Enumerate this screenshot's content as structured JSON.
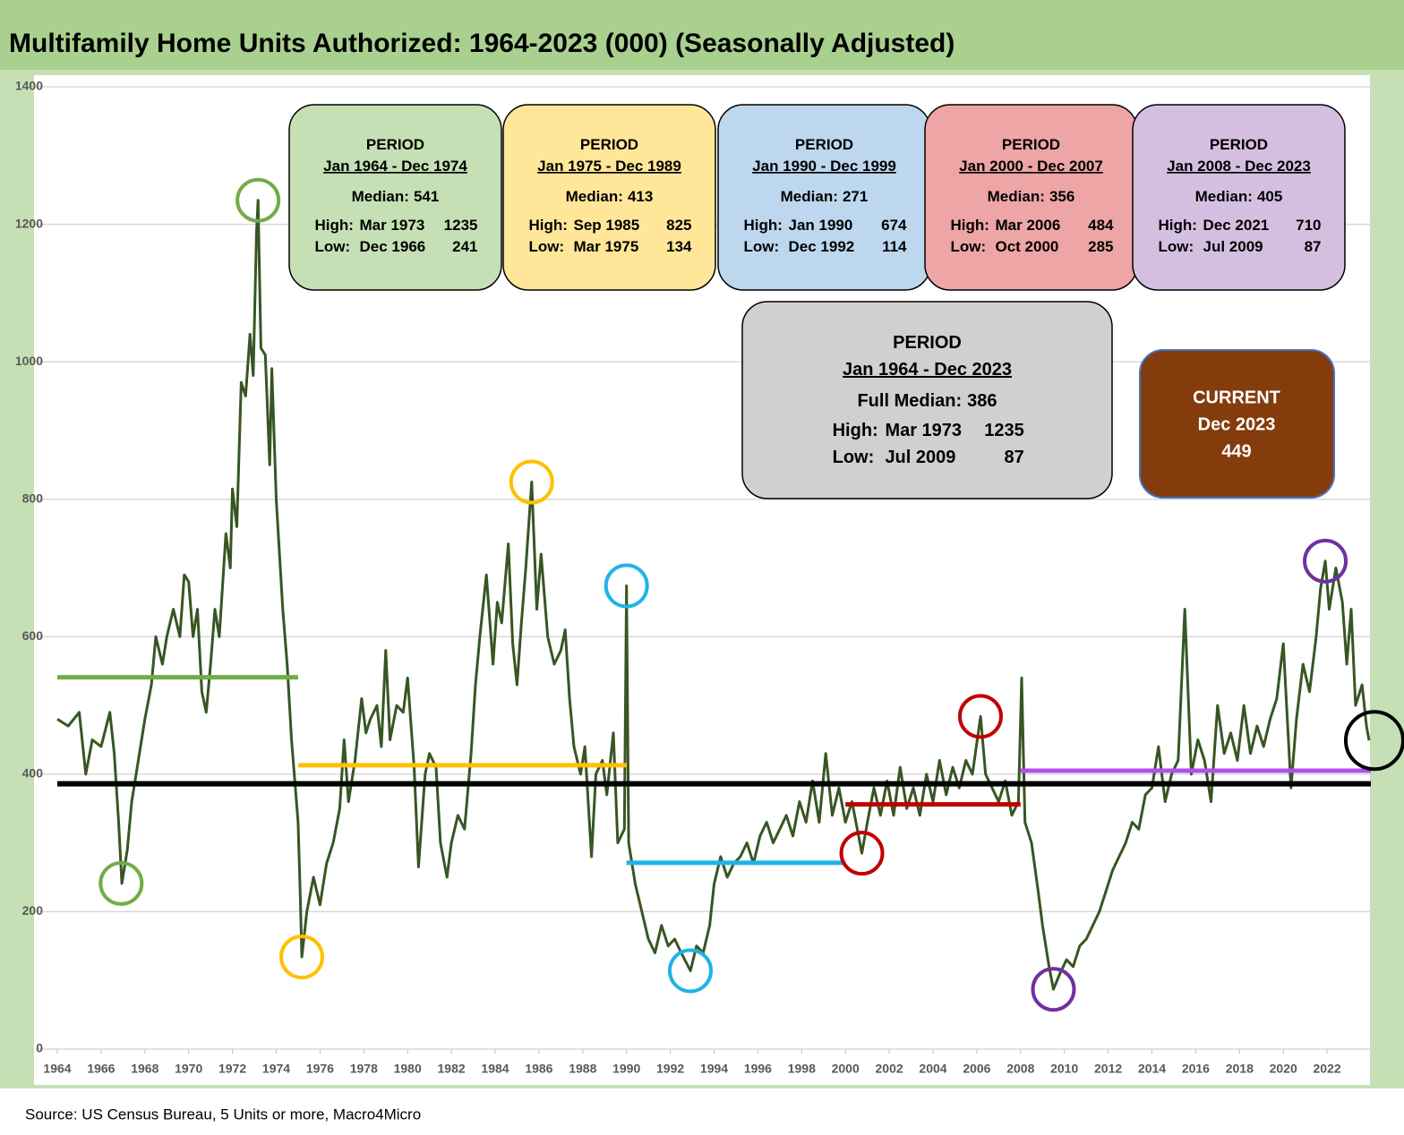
{
  "chart_data": {
    "type": "line",
    "title": "Multifamily Home Units Authorized: 1964-2023 (000) (Seasonally Adjusted)",
    "source": "Source: US Census Bureau, 5 Units or more, Macro4Micro",
    "xlim": [
      1964,
      2024
    ],
    "xticks": [
      1964,
      1966,
      1968,
      1970,
      1972,
      1974,
      1976,
      1978,
      1980,
      1982,
      1984,
      1986,
      1988,
      1990,
      1992,
      1994,
      1996,
      1998,
      2000,
      2002,
      2004,
      2006,
      2008,
      2010,
      2012,
      2014,
      2016,
      2018,
      2020,
      2022
    ],
    "ylim": [
      0,
      1400
    ],
    "yticks": [
      0,
      200,
      400,
      600,
      800,
      1000,
      1200,
      1400
    ],
    "grid": true,
    "x": [
      1964.0,
      1964.5,
      1965.0,
      1965.3,
      1965.6,
      1966.0,
      1966.4,
      1966.6,
      1966.8,
      1966.95,
      1967.2,
      1967.4,
      1967.7,
      1968.0,
      1968.3,
      1968.5,
      1968.8,
      1969.0,
      1969.3,
      1969.6,
      1969.8,
      1970.0,
      1970.2,
      1970.4,
      1970.6,
      1970.8,
      1971.0,
      1971.2,
      1971.4,
      1971.7,
      1971.9,
      1972.0,
      1972.2,
      1972.4,
      1972.6,
      1972.8,
      1972.95,
      1973.1,
      1973.17,
      1973.3,
      1973.5,
      1973.7,
      1973.8,
      1974.0,
      1974.3,
      1974.5,
      1974.7,
      1975.0,
      1975.1,
      1975.17,
      1975.4,
      1975.7,
      1976.0,
      1976.3,
      1976.6,
      1976.9,
      1977.1,
      1977.3,
      1977.6,
      1977.9,
      1978.1,
      1978.3,
      1978.6,
      1978.8,
      1979.0,
      1979.2,
      1979.5,
      1979.8,
      1980.0,
      1980.3,
      1980.5,
      1980.8,
      1981.0,
      1981.3,
      1981.5,
      1981.8,
      1982.0,
      1982.3,
      1982.6,
      1982.9,
      1983.1,
      1983.3,
      1983.6,
      1983.9,
      1984.1,
      1984.3,
      1984.6,
      1984.8,
      1985.0,
      1985.2,
      1985.4,
      1985.67,
      1985.9,
      1986.1,
      1986.4,
      1986.7,
      1987.0,
      1987.2,
      1987.4,
      1987.6,
      1987.9,
      1988.1,
      1988.4,
      1988.6,
      1988.9,
      1989.1,
      1989.4,
      1989.6,
      1989.9,
      1990.0,
      1990.1,
      1990.4,
      1990.7,
      1991.0,
      1991.3,
      1991.6,
      1991.9,
      1992.2,
      1992.5,
      1992.92,
      1993.2,
      1993.5,
      1993.8,
      1994.0,
      1994.3,
      1994.6,
      1994.9,
      1995.2,
      1995.5,
      1995.8,
      1996.1,
      1996.4,
      1996.7,
      1997.0,
      1997.3,
      1997.6,
      1997.9,
      1998.2,
      1998.5,
      1998.8,
      1999.1,
      1999.4,
      1999.7,
      2000.0,
      2000.3,
      2000.6,
      2000.75,
      2001.0,
      2001.3,
      2001.6,
      2001.9,
      2002.2,
      2002.5,
      2002.8,
      2003.1,
      2003.4,
      2003.7,
      2004.0,
      2004.3,
      2004.6,
      2004.9,
      2005.2,
      2005.5,
      2005.8,
      2006.17,
      2006.4,
      2006.7,
      2007.0,
      2007.3,
      2007.6,
      2007.9,
      2008.05,
      2008.2,
      2008.5,
      2008.8,
      2009.0,
      2009.3,
      2009.5,
      2009.8,
      2010.1,
      2010.4,
      2010.7,
      2011.0,
      2011.3,
      2011.6,
      2011.9,
      2012.2,
      2012.5,
      2012.8,
      2013.1,
      2013.4,
      2013.7,
      2014.0,
      2014.3,
      2014.6,
      2014.9,
      2015.2,
      2015.5,
      2015.8,
      2016.1,
      2016.4,
      2016.7,
      2017.0,
      2017.3,
      2017.6,
      2017.9,
      2018.2,
      2018.5,
      2018.8,
      2019.1,
      2019.4,
      2019.7,
      2020.0,
      2020.2,
      2020.35,
      2020.6,
      2020.9,
      2021.2,
      2021.5,
      2021.7,
      2021.92,
      2022.1,
      2022.4,
      2022.7,
      2022.9,
      2023.1,
      2023.3,
      2023.6,
      2023.8,
      2023.92
    ],
    "series": [
      {
        "color": "#375623",
        "values": [
          480,
          470,
          490,
          400,
          450,
          440,
          490,
          430,
          330,
          241,
          290,
          360,
          420,
          480,
          530,
          600,
          560,
          600,
          640,
          600,
          690,
          680,
          600,
          640,
          520,
          490,
          560,
          640,
          600,
          750,
          700,
          815,
          760,
          970,
          950,
          1040,
          980,
          1190,
          1235,
          1020,
          1010,
          850,
          990,
          800,
          640,
          560,
          450,
          330,
          220,
          134,
          200,
          250,
          210,
          270,
          300,
          350,
          450,
          360,
          420,
          510,
          460,
          480,
          500,
          440,
          580,
          450,
          500,
          490,
          540,
          410,
          265,
          400,
          430,
          410,
          300,
          250,
          300,
          340,
          320,
          430,
          530,
          600,
          690,
          560,
          650,
          620,
          735,
          590,
          530,
          620,
          700,
          825,
          640,
          720,
          600,
          560,
          580,
          610,
          510,
          440,
          400,
          440,
          280,
          400,
          420,
          370,
          460,
          300,
          320,
          674,
          300,
          240,
          200,
          160,
          140,
          180,
          150,
          160,
          140,
          114,
          150,
          140,
          180,
          240,
          280,
          250,
          270,
          280,
          300,
          270,
          310,
          330,
          300,
          320,
          340,
          310,
          360,
          330,
          390,
          330,
          430,
          340,
          380,
          330,
          360,
          310,
          285,
          330,
          380,
          340,
          390,
          340,
          410,
          350,
          380,
          340,
          400,
          360,
          420,
          370,
          410,
          380,
          420,
          400,
          484,
          400,
          380,
          360,
          390,
          340,
          360,
          540,
          330,
          300,
          230,
          180,
          120,
          87,
          110,
          130,
          120,
          150,
          160,
          180,
          200,
          230,
          260,
          280,
          300,
          330,
          320,
          370,
          380,
          440,
          360,
          400,
          420,
          640,
          400,
          450,
          420,
          360,
          500,
          430,
          460,
          420,
          500,
          430,
          470,
          440,
          480,
          510,
          590,
          470,
          380,
          480,
          560,
          520,
          600,
          670,
          710,
          640,
          700,
          650,
          560,
          640,
          500,
          530,
          470,
          449
        ]
      }
    ],
    "periods": [
      {
        "heading": "PERIOD",
        "range": "Jan 1964 - Dec 1974",
        "median_label": "Median:",
        "median": 541,
        "high_label": "High:",
        "high_date": "Mar 1973",
        "high": 1235,
        "low_label": "Low:",
        "low_date": "Dec 1966",
        "low": 241,
        "start": 1964,
        "end": 1975,
        "fill": "#c5e0b4",
        "color": "#70ad47",
        "circle": "#70ad47"
      },
      {
        "heading": "PERIOD",
        "range": "Jan 1975 - Dec 1989",
        "median_label": "Median:",
        "median": 413,
        "high_label": "High:",
        "high_date": "Sep 1985",
        "high": 825,
        "low_label": "Low:",
        "low_date": "Mar 1975",
        "low": 134,
        "start": 1975,
        "end": 1990,
        "fill": "#ffe699",
        "color": "#ffc000",
        "circle": "#ffc000"
      },
      {
        "heading": "PERIOD",
        "range": "Jan 1990 - Dec 1999",
        "median_label": "Median:",
        "median": 271,
        "high_label": "High:",
        "high_date": "Jan 1990",
        "high": 674,
        "low_label": "Low:",
        "low_date": "Dec 1992",
        "low": 114,
        "start": 1990,
        "end": 2000,
        "fill": "#bdd7ee",
        "color": "#1eb4e6",
        "circle": "#1eb4e6"
      },
      {
        "heading": "PERIOD",
        "range": "Jan 2000 - Dec 2007",
        "median_label": "Median:",
        "median": 356,
        "high_label": "High:",
        "high_date": "Mar 2006",
        "high": 484,
        "low_label": "Low:",
        "low_date": "Oct 2000",
        "low": 285,
        "start": 2000,
        "end": 2008,
        "fill": "#eda5a5",
        "color": "#c00000",
        "circle": "#c00000"
      },
      {
        "heading": "PERIOD",
        "range": "Jan 2008 - Dec 2023",
        "median_label": "Median:",
        "median": 405,
        "high_label": "High:",
        "high_date": "Dec 2021",
        "high": 710,
        "low_label": "Low:",
        "low_date": "Jul 2009",
        "low": 87,
        "start": 2008,
        "end": 2024,
        "fill": "#d5bfe1",
        "color": "#b050f0",
        "circle": "#7030a0"
      }
    ],
    "full": {
      "heading": "PERIOD",
      "range": "Jan 1964 - Dec 2023",
      "median_label": "Full Median:",
      "median": 386,
      "high_label": "High:",
      "high_date": "Mar 1973",
      "high": 1235,
      "low_label": "Low:",
      "low_date": "Jul 2009",
      "low": 87,
      "start": 1964,
      "end": 2024,
      "fill": "#d0d0d0",
      "color": "#000000"
    },
    "current": {
      "heading": "CURRENT",
      "date": "Dec 2023",
      "value": 449,
      "fill": "#843c0c",
      "border": "#4472c4",
      "circle": "#000000"
    }
  }
}
